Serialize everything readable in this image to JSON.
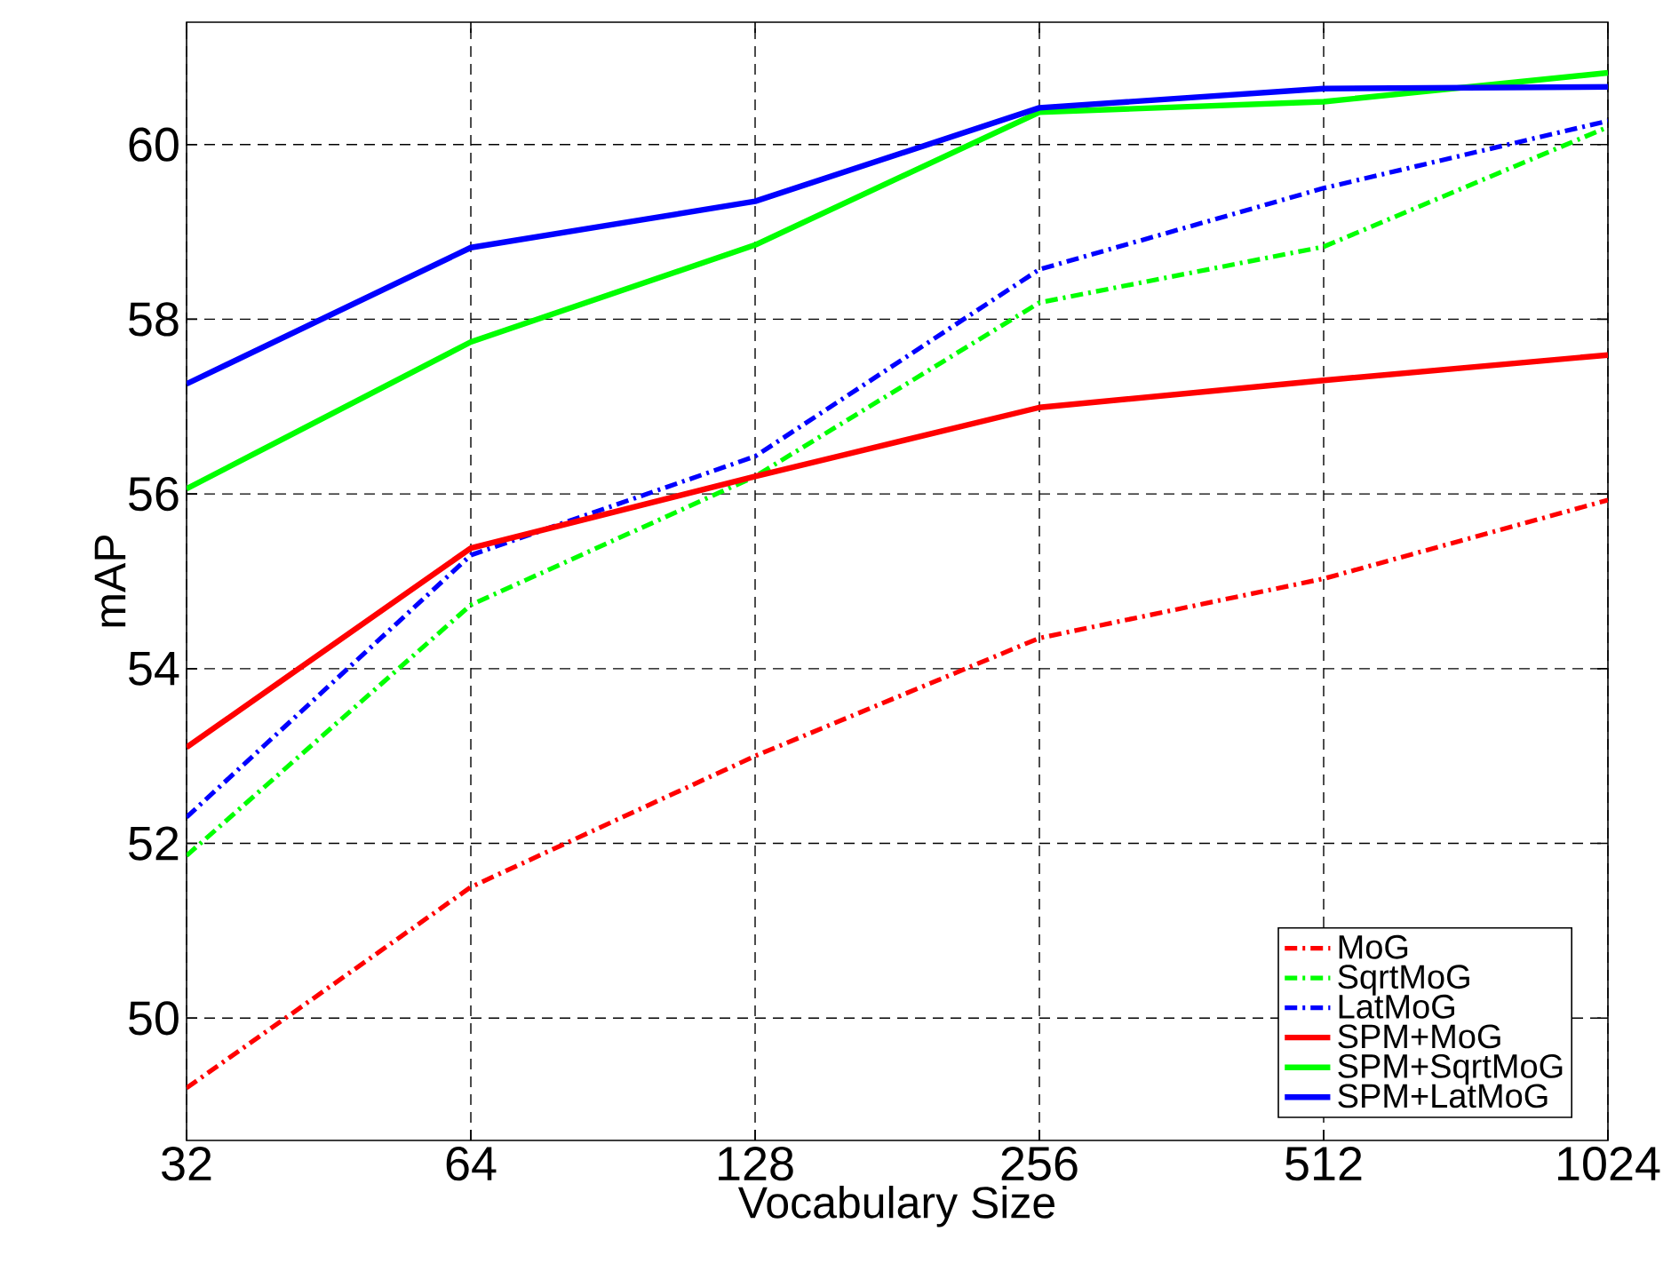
{
  "chart_data": {
    "type": "line",
    "xlabel": "Vocabulary Size",
    "ylabel": "mAP",
    "categories": [
      "32",
      "64",
      "128",
      "256",
      "512",
      "1024"
    ],
    "ylim": [
      48.6,
      61.4
    ],
    "yticks": [
      50,
      52,
      54,
      56,
      58,
      60
    ],
    "grid": true,
    "legend": "bottom right",
    "series": [
      {
        "name": "MoG",
        "color": "#ff0000",
        "line_style": "dashdot",
        "values": [
          49.2,
          51.5,
          53.0,
          54.35,
          55.03,
          55.93
        ]
      },
      {
        "name": "SqrtMoG",
        "color": "#00ff00",
        "line_style": "dashdot",
        "values": [
          51.86,
          54.73,
          56.2,
          58.19,
          58.83,
          60.2
        ]
      },
      {
        "name": "LatMoG",
        "color": "#0000ff",
        "line_style": "dashdot",
        "values": [
          52.3,
          55.3,
          56.43,
          58.57,
          59.5,
          60.27
        ]
      },
      {
        "name": "SPM+MoG",
        "color": "#ff0000",
        "line_style": "solid",
        "values": [
          53.1,
          55.38,
          56.2,
          56.99,
          57.3,
          57.59
        ]
      },
      {
        "name": "SPM+SqrtMoG",
        "color": "#00ff00",
        "line_style": "solid",
        "values": [
          56.06,
          57.74,
          58.85,
          60.37,
          60.49,
          60.82
        ]
      },
      {
        "name": "SPM+LatMoG",
        "color": "#0000ff",
        "line_style": "solid",
        "values": [
          57.26,
          58.82,
          59.35,
          60.42,
          60.64,
          60.66
        ]
      }
    ]
  }
}
